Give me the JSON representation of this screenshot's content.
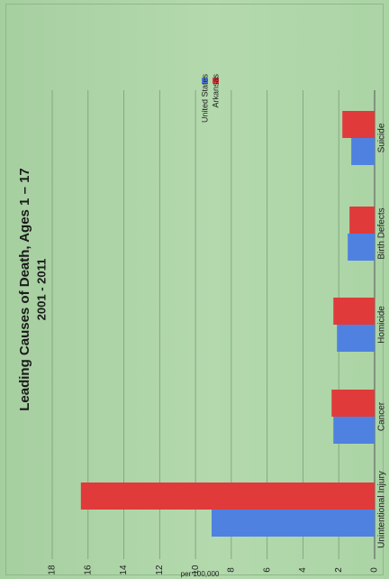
{
  "chart_data": {
    "type": "bar",
    "title": "Leading Causes of Death, Ages 1 – 17",
    "subtitle": "2001 - 2011",
    "categories": [
      "Unintentional Injury",
      "Cancer",
      "Homicide",
      "Birth Defects",
      "Suicide"
    ],
    "series": [
      {
        "name": "United States",
        "color": "#4f81e0",
        "values": [
          9.1,
          2.3,
          2.1,
          1.5,
          1.3
        ]
      },
      {
        "name": "Arkansas",
        "color": "#e03a3a",
        "values": [
          16.4,
          2.4,
          2.3,
          1.4,
          1.8
        ]
      }
    ],
    "xlabel": "",
    "ylabel": "",
    "ylim": [
      0,
      18
    ],
    "yticks": [
      0,
      2,
      4,
      6,
      8,
      10,
      12,
      14,
      16,
      18
    ],
    "grid": true,
    "legend": "top-right",
    "orientation": "rotated-90"
  },
  "axis_footnote": "per 100,000"
}
